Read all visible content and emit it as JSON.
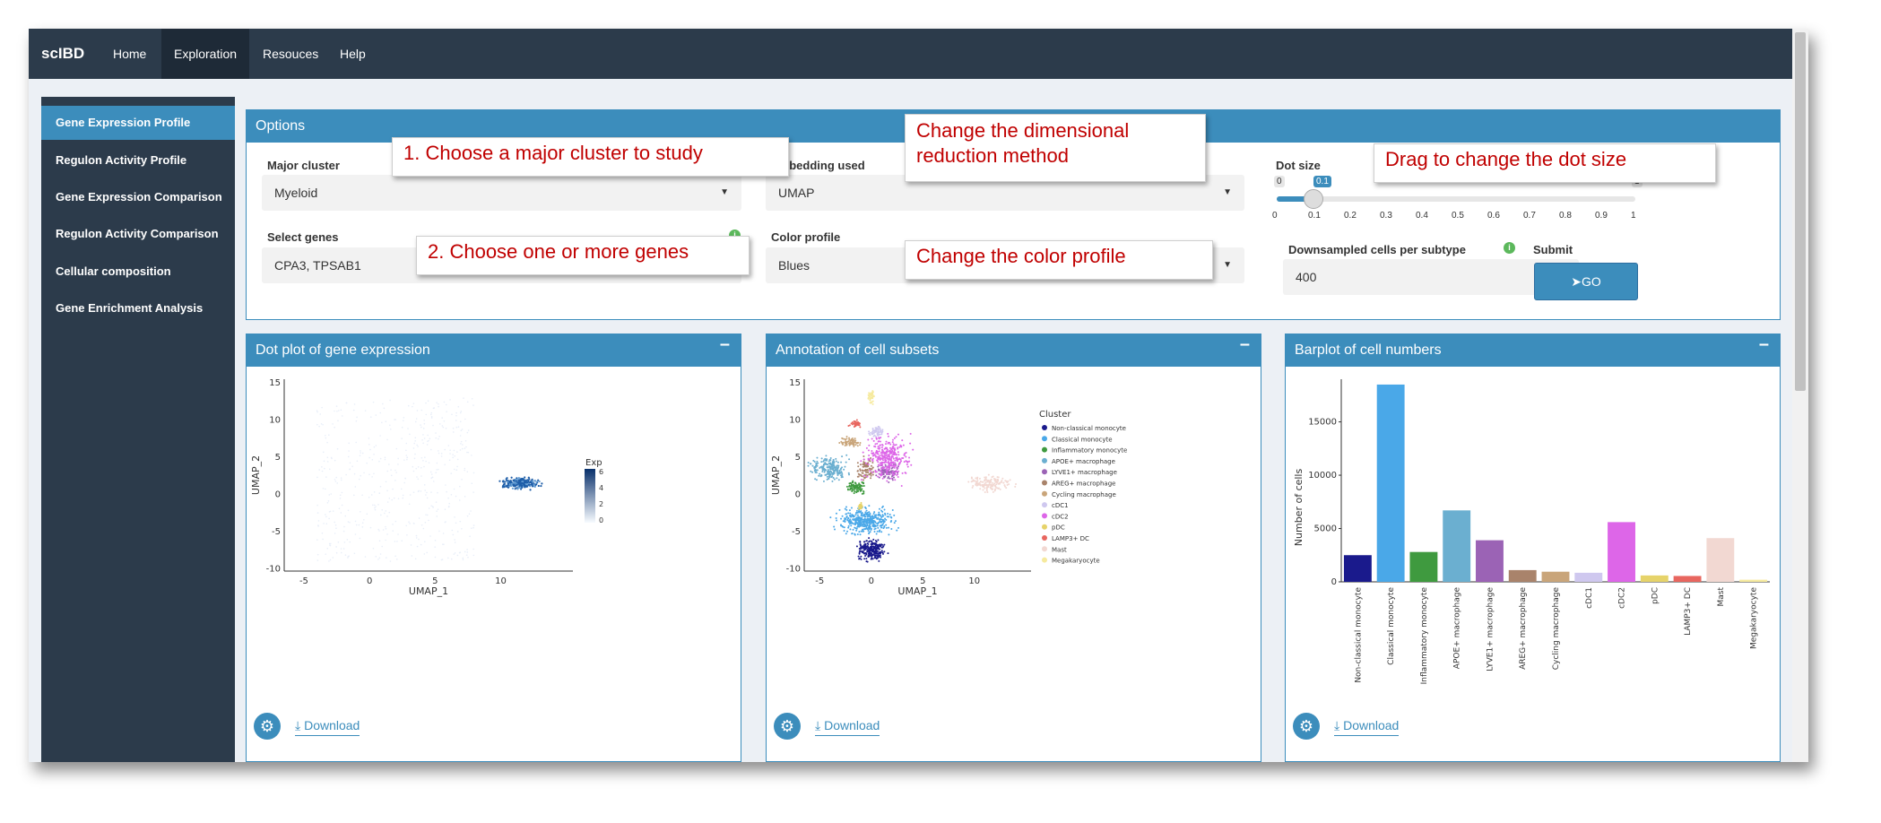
{
  "app": {
    "brand": "scIBD"
  },
  "nav": [
    {
      "label": "Home"
    },
    {
      "label": "Exploration"
    },
    {
      "label": "Resouces"
    },
    {
      "label": "Help"
    }
  ],
  "sidebar": {
    "items": [
      {
        "label": "Gene Expression Profile"
      },
      {
        "label": "Regulon Activity Profile"
      },
      {
        "label": "Gene Expression Comparison"
      },
      {
        "label": "Regulon Activity Comparison"
      },
      {
        "label": "Cellular composition"
      },
      {
        "label": "Gene Enrichment Analysis"
      }
    ]
  },
  "options": {
    "title": "Options",
    "major_cluster": {
      "label": "Major cluster",
      "value": "Myeloid"
    },
    "select_genes": {
      "label": "Select genes",
      "value": "CPA3, TPSAB1"
    },
    "embedding": {
      "label": "Embedding used",
      "value": "UMAP"
    },
    "color_profile": {
      "label": "Color profile",
      "value": "Blues"
    },
    "dot_size": {
      "label": "Dot size",
      "min": "0",
      "max": "1",
      "value": "0.1",
      "value_num": 0.1,
      "ticks": [
        "0",
        "0.1",
        "0.2",
        "0.3",
        "0.4",
        "0.5",
        "0.6",
        "0.7",
        "0.8",
        "0.9",
        "1"
      ]
    },
    "downsampled": {
      "label": "Downsampled cells per subtype",
      "value": "400"
    },
    "submit": {
      "label": "Submit",
      "button": "GO"
    }
  },
  "callouts": {
    "c1": "1. Choose a major cluster to study",
    "c2": "2. Choose one or more genes",
    "c3a": "Change the dimensional",
    "c3b": "reduction method",
    "c4": "Change the color profile",
    "c5": "Drag to change the dot size"
  },
  "panels": {
    "dot": {
      "title": "Dot plot of gene expression",
      "download": "Download"
    },
    "annot": {
      "title": "Annotation of cell subsets",
      "download": "Download"
    },
    "bar": {
      "title": "Barplot of cell numbers",
      "download": "Download"
    }
  },
  "umap_axes": {
    "xlabel": "UMAP_1",
    "ylabel": "UMAP_2",
    "xticks": [
      "-5",
      "0",
      "5",
      "10"
    ],
    "yticks": [
      "15",
      "10",
      "5",
      "0",
      "-5",
      "-10"
    ]
  },
  "exp_legend": {
    "title": "Exp",
    "ticks": [
      "6",
      "4",
      "2",
      "0"
    ]
  },
  "cluster_legend": {
    "title": "Cluster",
    "items": [
      {
        "name": "Non-classical monocyte",
        "color": "#1a1a8c"
      },
      {
        "name": "Classical monocyte",
        "color": "#4aa8e8"
      },
      {
        "name": "Inflammatory monocyte",
        "color": "#3f9a3f"
      },
      {
        "name": "APOE+ macrophage",
        "color": "#6bafd0"
      },
      {
        "name": "LYVE1+ macrophage",
        "color": "#9b63b5"
      },
      {
        "name": "AREG+ macrophage",
        "color": "#a9836b"
      },
      {
        "name": "Cycling macrophage",
        "color": "#c9a57a"
      },
      {
        "name": "cDC1",
        "color": "#cfc8ef"
      },
      {
        "name": "cDC2",
        "color": "#dd66e8"
      },
      {
        "name": "pDC",
        "color": "#e6d36a"
      },
      {
        "name": "LAMP3+ DC",
        "color": "#e8665f"
      },
      {
        "name": "Mast",
        "color": "#f2d8d2"
      },
      {
        "name": "Megakaryocyte",
        "color": "#f6ea9e"
      }
    ]
  },
  "chart_data": {
    "type": "bar",
    "title": "",
    "ylabel": "Number of cells",
    "xlabel": "",
    "ylim": [
      0,
      19000
    ],
    "yticks": [
      "15000",
      "10000",
      "5000",
      "0"
    ],
    "categories": [
      "Non-classical monocyte",
      "Classical monocyte",
      "Inflammatory monocyte",
      "APOE+ macrophage",
      "LYVE1+ macrophage",
      "AREG+ macrophage",
      "Cycling macrophage",
      "cDC1",
      "cDC2",
      "pDC",
      "LAMP3+ DC",
      "Mast",
      "Megakaryocyte"
    ],
    "values": [
      2500,
      18500,
      2800,
      6700,
      3900,
      1100,
      950,
      850,
      5600,
      600,
      550,
      4100,
      200
    ],
    "colors": [
      "#1a1a8c",
      "#4aa8e8",
      "#3f9a3f",
      "#6bafd0",
      "#9b63b5",
      "#a9836b",
      "#c9a57a",
      "#cfc8ef",
      "#dd66e8",
      "#e6d36a",
      "#e8665f",
      "#f2d8d2",
      "#f6ea9e"
    ]
  }
}
